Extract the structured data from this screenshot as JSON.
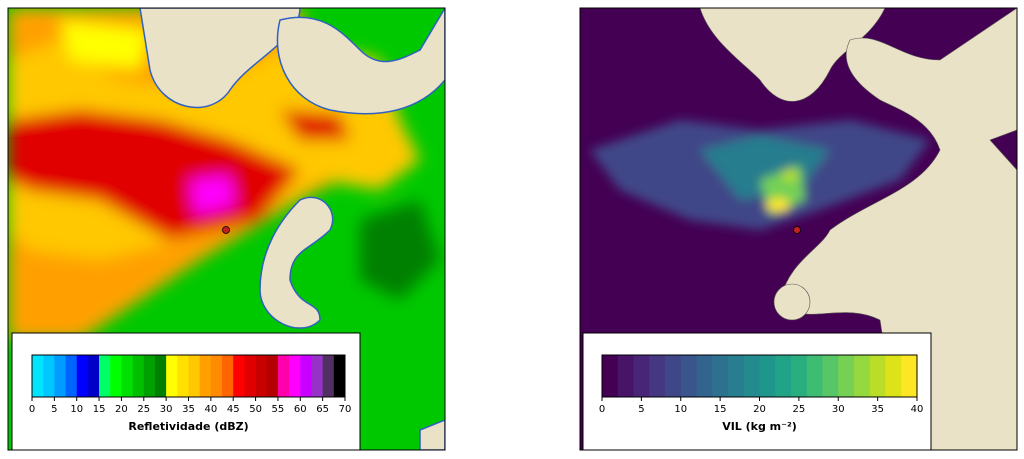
{
  "panels": [
    {
      "colorbar": {
        "label": "Refletividade (dBZ)",
        "range": [
          0,
          70
        ],
        "ticks": [
          0,
          5,
          10,
          15,
          20,
          25,
          30,
          35,
          40,
          45,
          50,
          55,
          60,
          65,
          70
        ],
        "colors": [
          "#00e5ff",
          "#00c8ff",
          "#009cff",
          "#0064ff",
          "#0000ff",
          "#0000c8",
          "#00ff64",
          "#00ff00",
          "#00e000",
          "#00c000",
          "#00a000",
          "#008000",
          "#ffff00",
          "#ffe000",
          "#ffc800",
          "#ffa000",
          "#ff8c00",
          "#ff6400",
          "#ff0000",
          "#e00000",
          "#c80000",
          "#b40000",
          "#ff00aa",
          "#ff00ff",
          "#c800ff",
          "#9632c8",
          "#503060",
          "#000000"
        ]
      }
    },
    {
      "colorbar": {
        "label": "VIL (kg m⁻²)",
        "range": [
          0,
          40
        ],
        "ticks": [
          0,
          5,
          10,
          15,
          20,
          25,
          30,
          35,
          40
        ],
        "colors": [
          "#440154",
          "#481467",
          "#482576",
          "#453781",
          "#3f4788",
          "#39558c",
          "#32648e",
          "#2d718e",
          "#287d8e",
          "#238a8d",
          "#1f968b",
          "#20a386",
          "#29af7f",
          "#3dbc74",
          "#56c667",
          "#75d054",
          "#95d840",
          "#bade28",
          "#dde318",
          "#fde725"
        ]
      }
    }
  ]
}
